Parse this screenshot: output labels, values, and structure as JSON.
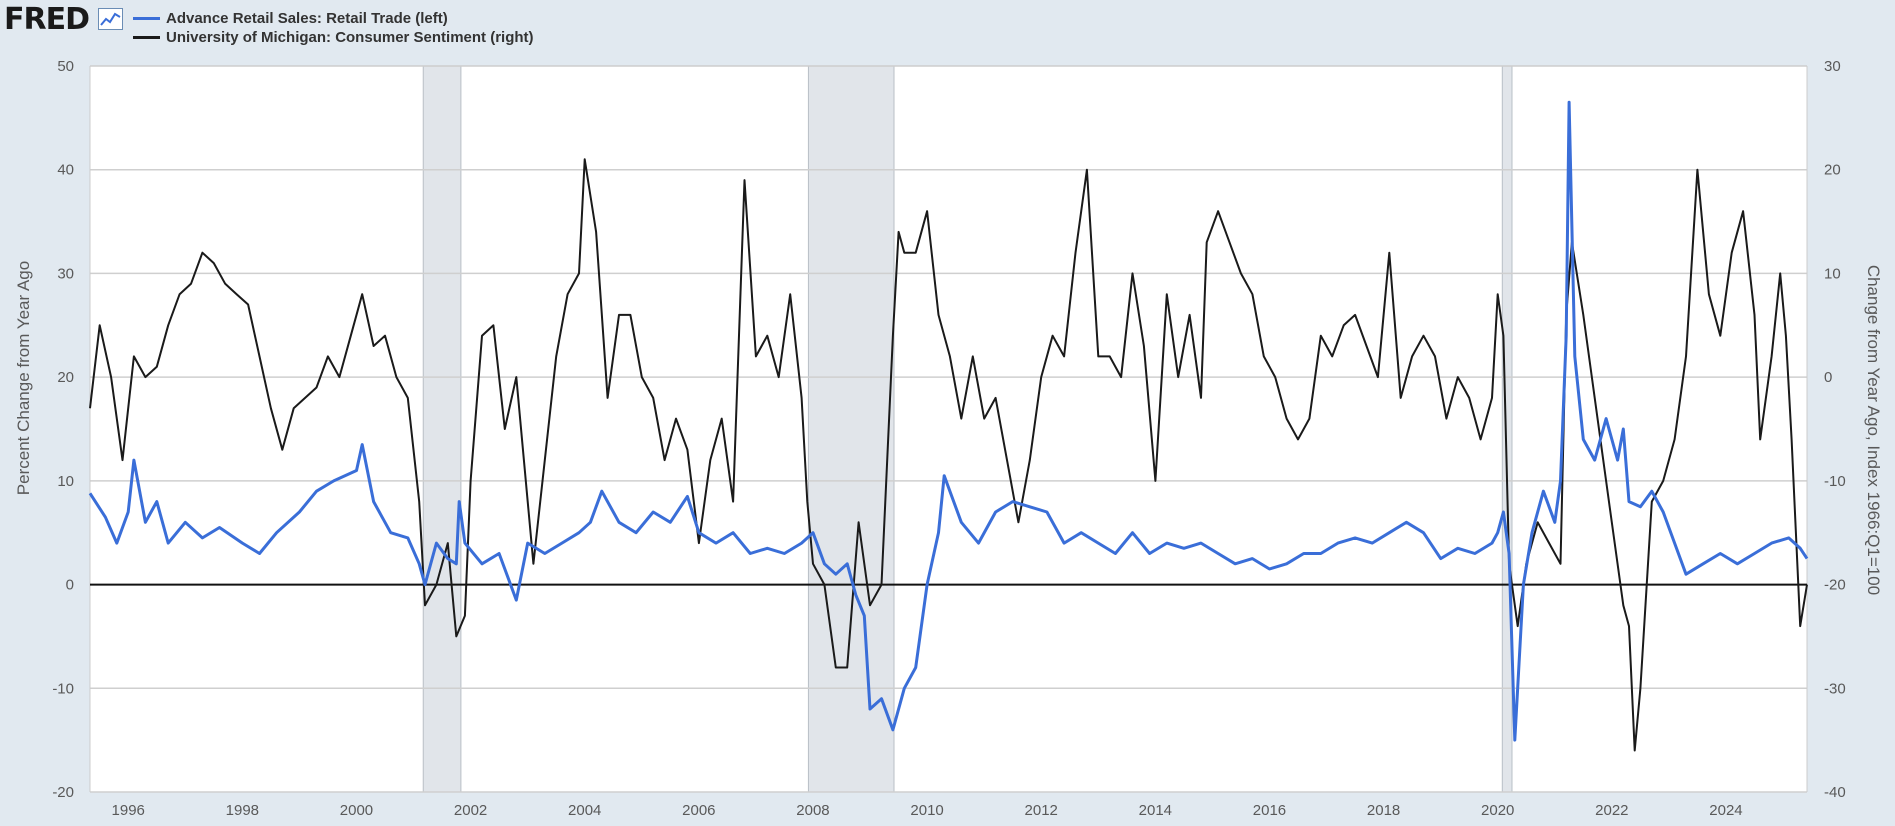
{
  "header": {
    "logo_text": "FRED",
    "logo_icon": "line-chart-icon"
  },
  "colors": {
    "retail_sales": "#3a6ed8",
    "consumer_sentiment": "#1a1a1a",
    "recession_shade": "#e1e5ea",
    "background": "#e1e9f0",
    "gridline": "#cfcfcf"
  },
  "chart_data": {
    "type": "line",
    "title": "",
    "xlabel": "",
    "ylabel_left": "Percent Change from Year Ago",
    "ylabel_right": "Change from Year Ago, Index 1966:Q1=100",
    "xlim": [
      1995.33,
      2025.42
    ],
    "ylim_left": [
      -20,
      50
    ],
    "ylim_right": [
      -40,
      30
    ],
    "x_ticks": [
      "1996",
      "1998",
      "2000",
      "2002",
      "2004",
      "2006",
      "2008",
      "2010",
      "2012",
      "2014",
      "2016",
      "2018",
      "2020",
      "2022",
      "2024"
    ],
    "y_ticks_left": [
      "50",
      "40",
      "30",
      "20",
      "10",
      "0",
      "-10",
      "-20"
    ],
    "y_ticks_right": [
      "30",
      "20",
      "10",
      "0",
      "-10",
      "-20",
      "-30",
      "-40"
    ],
    "grid": true,
    "legend_position": "top-left",
    "recessions": [
      [
        2001.17,
        2001.83
      ],
      [
        2007.92,
        2009.42
      ],
      [
        2020.08,
        2020.25
      ]
    ],
    "series": [
      {
        "name": "Advance Retail Sales: Retail Trade (left)",
        "axis": "left",
        "points": [
          [
            1995.33,
            8.8
          ],
          [
            1995.6,
            6.5
          ],
          [
            1995.8,
            4.0
          ],
          [
            1996.0,
            7.0
          ],
          [
            1996.1,
            12.0
          ],
          [
            1996.3,
            6.0
          ],
          [
            1996.5,
            8.0
          ],
          [
            1996.7,
            4.0
          ],
          [
            1997.0,
            6.0
          ],
          [
            1997.3,
            4.5
          ],
          [
            1997.6,
            5.5
          ],
          [
            1998.0,
            4.0
          ],
          [
            1998.3,
            3.0
          ],
          [
            1998.6,
            5.0
          ],
          [
            1999.0,
            7.0
          ],
          [
            1999.3,
            9.0
          ],
          [
            1999.6,
            10.0
          ],
          [
            2000.0,
            11.0
          ],
          [
            2000.1,
            13.5
          ],
          [
            2000.3,
            8.0
          ],
          [
            2000.6,
            5.0
          ],
          [
            2000.9,
            4.5
          ],
          [
            2001.1,
            2.0
          ],
          [
            2001.2,
            0.0
          ],
          [
            2001.4,
            4.0
          ],
          [
            2001.6,
            2.5
          ],
          [
            2001.75,
            2.0
          ],
          [
            2001.8,
            8.0
          ],
          [
            2001.9,
            4.0
          ],
          [
            2002.2,
            2.0
          ],
          [
            2002.5,
            3.0
          ],
          [
            2002.8,
            -1.5
          ],
          [
            2003.0,
            4.0
          ],
          [
            2003.3,
            3.0
          ],
          [
            2003.6,
            4.0
          ],
          [
            2003.9,
            5.0
          ],
          [
            2004.1,
            6.0
          ],
          [
            2004.3,
            9.0
          ],
          [
            2004.6,
            6.0
          ],
          [
            2004.9,
            5.0
          ],
          [
            2005.2,
            7.0
          ],
          [
            2005.5,
            6.0
          ],
          [
            2005.8,
            8.5
          ],
          [
            2006.0,
            5.0
          ],
          [
            2006.3,
            4.0
          ],
          [
            2006.6,
            5.0
          ],
          [
            2006.9,
            3.0
          ],
          [
            2007.2,
            3.5
          ],
          [
            2007.5,
            3.0
          ],
          [
            2007.8,
            4.0
          ],
          [
            2008.0,
            5.0
          ],
          [
            2008.2,
            2.0
          ],
          [
            2008.4,
            1.0
          ],
          [
            2008.6,
            2.0
          ],
          [
            2008.75,
            -1.0
          ],
          [
            2008.9,
            -3.0
          ],
          [
            2009.0,
            -12.0
          ],
          [
            2009.2,
            -11.0
          ],
          [
            2009.4,
            -14.0
          ],
          [
            2009.6,
            -10.0
          ],
          [
            2009.8,
            -8.0
          ],
          [
            2010.0,
            0.0
          ],
          [
            2010.2,
            5.0
          ],
          [
            2010.3,
            10.5
          ],
          [
            2010.6,
            6.0
          ],
          [
            2010.9,
            4.0
          ],
          [
            2011.2,
            7.0
          ],
          [
            2011.5,
            8.0
          ],
          [
            2011.8,
            7.5
          ],
          [
            2012.1,
            7.0
          ],
          [
            2012.4,
            4.0
          ],
          [
            2012.7,
            5.0
          ],
          [
            2013.0,
            4.0
          ],
          [
            2013.3,
            3.0
          ],
          [
            2013.6,
            5.0
          ],
          [
            2013.9,
            3.0
          ],
          [
            2014.2,
            4.0
          ],
          [
            2014.5,
            3.5
          ],
          [
            2014.8,
            4.0
          ],
          [
            2015.1,
            3.0
          ],
          [
            2015.4,
            2.0
          ],
          [
            2015.7,
            2.5
          ],
          [
            2016.0,
            1.5
          ],
          [
            2016.3,
            2.0
          ],
          [
            2016.6,
            3.0
          ],
          [
            2016.9,
            3.0
          ],
          [
            2017.2,
            4.0
          ],
          [
            2017.5,
            4.5
          ],
          [
            2017.8,
            4.0
          ],
          [
            2018.1,
            5.0
          ],
          [
            2018.4,
            6.0
          ],
          [
            2018.7,
            5.0
          ],
          [
            2019.0,
            2.5
          ],
          [
            2019.3,
            3.5
          ],
          [
            2019.6,
            3.0
          ],
          [
            2019.9,
            4.0
          ],
          [
            2020.0,
            5.0
          ],
          [
            2020.1,
            7.0
          ],
          [
            2020.2,
            3.0
          ],
          [
            2020.3,
            -15.0
          ],
          [
            2020.45,
            0.0
          ],
          [
            2020.6,
            5.0
          ],
          [
            2020.8,
            9.0
          ],
          [
            2021.0,
            6.0
          ],
          [
            2021.1,
            10.0
          ],
          [
            2021.2,
            24.0
          ],
          [
            2021.25,
            46.5
          ],
          [
            2021.35,
            22.0
          ],
          [
            2021.5,
            14.0
          ],
          [
            2021.7,
            12.0
          ],
          [
            2021.9,
            16.0
          ],
          [
            2022.1,
            12.0
          ],
          [
            2022.2,
            15.0
          ],
          [
            2022.3,
            8.0
          ],
          [
            2022.5,
            7.5
          ],
          [
            2022.7,
            9.0
          ],
          [
            2022.9,
            7.0
          ],
          [
            2023.1,
            4.0
          ],
          [
            2023.3,
            1.0
          ],
          [
            2023.6,
            2.0
          ],
          [
            2023.9,
            3.0
          ],
          [
            2024.2,
            2.0
          ],
          [
            2024.5,
            3.0
          ],
          [
            2024.8,
            4.0
          ],
          [
            2025.1,
            4.5
          ],
          [
            2025.3,
            3.5
          ],
          [
            2025.42,
            2.5
          ]
        ]
      },
      {
        "name": "University of Michigan: Consumer Sentiment (right)",
        "axis": "right",
        "points": [
          [
            1995.33,
            -3.0
          ],
          [
            1995.5,
            5.0
          ],
          [
            1995.7,
            0.0
          ],
          [
            1995.9,
            -8.0
          ],
          [
            1996.1,
            2.0
          ],
          [
            1996.3,
            0.0
          ],
          [
            1996.5,
            1.0
          ],
          [
            1996.7,
            5.0
          ],
          [
            1996.9,
            8.0
          ],
          [
            1997.1,
            9.0
          ],
          [
            1997.3,
            12.0
          ],
          [
            1997.5,
            11.0
          ],
          [
            1997.7,
            9.0
          ],
          [
            1997.9,
            8.0
          ],
          [
            1998.1,
            7.0
          ],
          [
            1998.3,
            2.0
          ],
          [
            1998.5,
            -3.0
          ],
          [
            1998.7,
            -7.0
          ],
          [
            1998.9,
            -3.0
          ],
          [
            1999.1,
            -2.0
          ],
          [
            1999.3,
            -1.0
          ],
          [
            1999.5,
            2.0
          ],
          [
            1999.7,
            0.0
          ],
          [
            1999.9,
            4.0
          ],
          [
            2000.1,
            8.0
          ],
          [
            2000.3,
            3.0
          ],
          [
            2000.5,
            4.0
          ],
          [
            2000.7,
            0.0
          ],
          [
            2000.9,
            -2.0
          ],
          [
            2001.1,
            -12.0
          ],
          [
            2001.2,
            -22.0
          ],
          [
            2001.4,
            -20.0
          ],
          [
            2001.6,
            -16.0
          ],
          [
            2001.75,
            -25.0
          ],
          [
            2001.9,
            -23.0
          ],
          [
            2002.0,
            -10.0
          ],
          [
            2002.2,
            4.0
          ],
          [
            2002.4,
            5.0
          ],
          [
            2002.6,
            -5.0
          ],
          [
            2002.8,
            0.0
          ],
          [
            2003.0,
            -12.0
          ],
          [
            2003.1,
            -18.0
          ],
          [
            2003.3,
            -8.0
          ],
          [
            2003.5,
            2.0
          ],
          [
            2003.7,
            8.0
          ],
          [
            2003.9,
            10.0
          ],
          [
            2004.0,
            21.0
          ],
          [
            2004.2,
            14.0
          ],
          [
            2004.4,
            -2.0
          ],
          [
            2004.6,
            6.0
          ],
          [
            2004.8,
            6.0
          ],
          [
            2005.0,
            0.0
          ],
          [
            2005.2,
            -2.0
          ],
          [
            2005.4,
            -8.0
          ],
          [
            2005.6,
            -4.0
          ],
          [
            2005.8,
            -7.0
          ],
          [
            2006.0,
            -16.0
          ],
          [
            2006.2,
            -8.0
          ],
          [
            2006.4,
            -4.0
          ],
          [
            2006.6,
            -12.0
          ],
          [
            2006.8,
            19.0
          ],
          [
            2007.0,
            2.0
          ],
          [
            2007.2,
            4.0
          ],
          [
            2007.4,
            0.0
          ],
          [
            2007.6,
            8.0
          ],
          [
            2007.8,
            -2.0
          ],
          [
            2007.9,
            -12.0
          ],
          [
            2008.0,
            -18.0
          ],
          [
            2008.2,
            -20.0
          ],
          [
            2008.4,
            -28.0
          ],
          [
            2008.6,
            -28.0
          ],
          [
            2008.8,
            -14.0
          ],
          [
            2009.0,
            -22.0
          ],
          [
            2009.2,
            -20.0
          ],
          [
            2009.4,
            4.0
          ],
          [
            2009.5,
            14.0
          ],
          [
            2009.6,
            12.0
          ],
          [
            2009.8,
            12.0
          ],
          [
            2010.0,
            16.0
          ],
          [
            2010.2,
            6.0
          ],
          [
            2010.4,
            2.0
          ],
          [
            2010.6,
            -4.0
          ],
          [
            2010.8,
            2.0
          ],
          [
            2011.0,
            -4.0
          ],
          [
            2011.2,
            -2.0
          ],
          [
            2011.4,
            -8.0
          ],
          [
            2011.6,
            -14.0
          ],
          [
            2011.8,
            -8.0
          ],
          [
            2012.0,
            0.0
          ],
          [
            2012.2,
            4.0
          ],
          [
            2012.4,
            2.0
          ],
          [
            2012.6,
            12.0
          ],
          [
            2012.8,
            20.0
          ],
          [
            2013.0,
            2.0
          ],
          [
            2013.2,
            2.0
          ],
          [
            2013.4,
            0.0
          ],
          [
            2013.6,
            10.0
          ],
          [
            2013.8,
            3.0
          ],
          [
            2014.0,
            -10.0
          ],
          [
            2014.2,
            8.0
          ],
          [
            2014.4,
            0.0
          ],
          [
            2014.6,
            6.0
          ],
          [
            2014.8,
            -2.0
          ],
          [
            2014.9,
            13.0
          ],
          [
            2015.1,
            16.0
          ],
          [
            2015.3,
            13.0
          ],
          [
            2015.5,
            10.0
          ],
          [
            2015.7,
            8.0
          ],
          [
            2015.9,
            2.0
          ],
          [
            2016.1,
            0.0
          ],
          [
            2016.3,
            -4.0
          ],
          [
            2016.5,
            -6.0
          ],
          [
            2016.7,
            -4.0
          ],
          [
            2016.9,
            4.0
          ],
          [
            2017.1,
            2.0
          ],
          [
            2017.3,
            5.0
          ],
          [
            2017.5,
            6.0
          ],
          [
            2017.7,
            3.0
          ],
          [
            2017.9,
            0.0
          ],
          [
            2018.1,
            12.0
          ],
          [
            2018.3,
            -2.0
          ],
          [
            2018.5,
            2.0
          ],
          [
            2018.7,
            4.0
          ],
          [
            2018.9,
            2.0
          ],
          [
            2019.1,
            -4.0
          ],
          [
            2019.3,
            0.0
          ],
          [
            2019.5,
            -2.0
          ],
          [
            2019.7,
            -6.0
          ],
          [
            2019.9,
            -2.0
          ],
          [
            2020.0,
            8.0
          ],
          [
            2020.1,
            4.0
          ],
          [
            2020.2,
            -18.0
          ],
          [
            2020.35,
            -24.0
          ],
          [
            2020.5,
            -18.0
          ],
          [
            2020.7,
            -14.0
          ],
          [
            2020.9,
            -16.0
          ],
          [
            2021.1,
            -18.0
          ],
          [
            2021.2,
            6.0
          ],
          [
            2021.3,
            13.0
          ],
          [
            2021.5,
            6.0
          ],
          [
            2021.7,
            -2.0
          ],
          [
            2021.9,
            -10.0
          ],
          [
            2022.0,
            -14.0
          ],
          [
            2022.2,
            -22.0
          ],
          [
            2022.3,
            -24.0
          ],
          [
            2022.4,
            -36.0
          ],
          [
            2022.5,
            -30.0
          ],
          [
            2022.7,
            -12.0
          ],
          [
            2022.9,
            -10.0
          ],
          [
            2023.1,
            -6.0
          ],
          [
            2023.3,
            2.0
          ],
          [
            2023.5,
            20.0
          ],
          [
            2023.7,
            8.0
          ],
          [
            2023.9,
            4.0
          ],
          [
            2024.1,
            12.0
          ],
          [
            2024.3,
            16.0
          ],
          [
            2024.5,
            6.0
          ],
          [
            2024.6,
            -6.0
          ],
          [
            2024.8,
            2.0
          ],
          [
            2024.95,
            10.0
          ],
          [
            2025.05,
            4.0
          ],
          [
            2025.15,
            -6.0
          ],
          [
            2025.3,
            -24.0
          ],
          [
            2025.42,
            -20.0
          ]
        ]
      }
    ]
  }
}
